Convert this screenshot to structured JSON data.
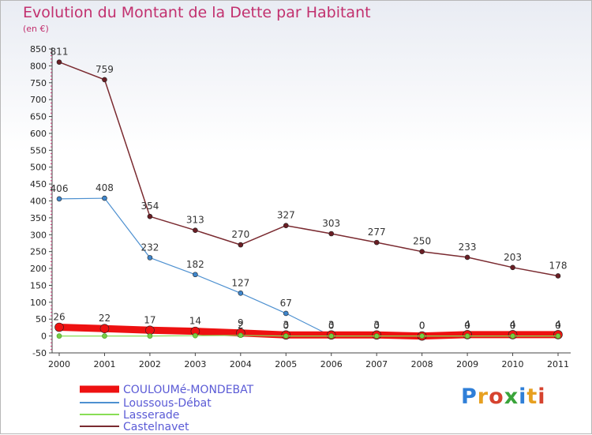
{
  "header": {
    "title": "Evolution du Montant de la Dette par Habitant",
    "subtitle": "(en €)"
  },
  "logo": {
    "text": "Proxiti",
    "letter_colors": [
      "#2f7fd8",
      "#e7a020",
      "#d6432f",
      "#3aa43a",
      "#2f7fd8",
      "#e7a020",
      "#d6432f"
    ]
  },
  "chart_data": {
    "type": "line",
    "x": [
      "2000",
      "2001",
      "2002",
      "2003",
      "2004",
      "2005",
      "2006",
      "2007",
      "2008",
      "2009",
      "2010",
      "2011"
    ],
    "ylim": [
      -50,
      850
    ],
    "yticks": [
      -50,
      0,
      50,
      100,
      150,
      200,
      250,
      300,
      350,
      400,
      450,
      500,
      550,
      600,
      650,
      700,
      750,
      800,
      850
    ],
    "grid": false,
    "legend_position": "bottom-left",
    "series": [
      {
        "name": "COULOUMé-MONDEBAT",
        "color": "#ee1111",
        "marker": "#ee1111",
        "values": [
          26,
          22,
          17,
          14,
          9,
          3,
          3,
          3,
          0,
          4,
          4,
          4
        ],
        "labels": [
          "26",
          "22",
          "17",
          "14",
          "9",
          "3",
          "3",
          "3",
          "0",
          "4",
          "4",
          "4"
        ]
      },
      {
        "name": "Loussous-Débat",
        "color": "#4d90d0",
        "marker": "#3f86cc",
        "values": [
          406,
          408,
          232,
          182,
          127,
          67,
          null,
          null,
          null,
          null,
          null,
          null
        ],
        "labels": [
          "406",
          "408",
          "232",
          "182",
          "127",
          "67",
          "",
          "",
          "",
          "",
          "",
          ""
        ]
      },
      {
        "name": "Lasserade",
        "color": "#88dd55",
        "marker": "#77cc44",
        "values": [
          0,
          0,
          0,
          1,
          2,
          0,
          0,
          0,
          0,
          0,
          0,
          0
        ],
        "labels": [
          "",
          "",
          "",
          "",
          "2",
          "0",
          "0",
          "0",
          "0",
          "0",
          "0",
          "0"
        ]
      },
      {
        "name": "Castelnavet",
        "color": "#7a2a30",
        "marker": "#6a1e24",
        "values": [
          811,
          759,
          354,
          313,
          270,
          327,
          303,
          277,
          250,
          233,
          203,
          178
        ],
        "labels": [
          "811",
          "759",
          "354",
          "313",
          "270",
          "327",
          "303",
          "277",
          "250",
          "233",
          "203",
          "178"
        ]
      }
    ]
  }
}
